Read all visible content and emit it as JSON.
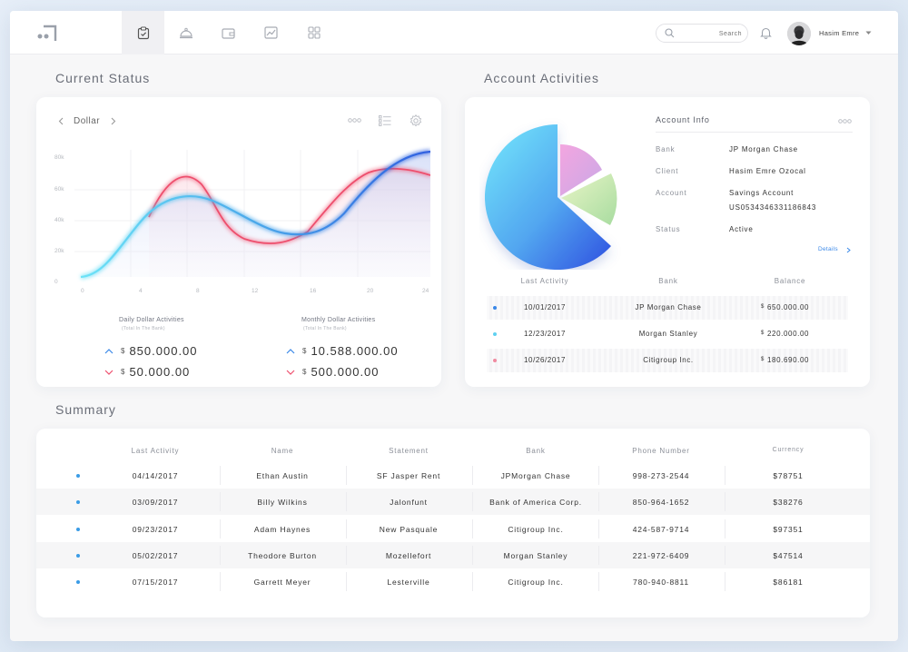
{
  "topbar": {
    "nav": [
      "clipboard-check-icon",
      "bell-service-icon",
      "wallet-icon",
      "chart-icon",
      "grid-icon"
    ],
    "search_placeholder": "Search",
    "user_name": "Hasim Emre"
  },
  "current_status": {
    "title": "Current Status",
    "currency_label": "Dollar",
    "y_ticks": [
      "80k",
      "60k",
      "40k",
      "20k",
      "0"
    ],
    "x_ticks": [
      "0",
      "4",
      "8",
      "12",
      "16",
      "20",
      "24"
    ],
    "daily": {
      "title": "Daily Dollar Activities",
      "subtitle": "(Total In The Bank)",
      "up_value": "850.000.00",
      "down_value": "50.000.00"
    },
    "monthly": {
      "title": "Monthly Dollar Activities",
      "subtitle": "(Total In The Bank)",
      "up_value": "10.588.000.00",
      "down_value": "500.000.00"
    },
    "currency_symbol": "$"
  },
  "account_activities": {
    "title": "Account Activities",
    "info_title": "Account Info",
    "fields": [
      {
        "label": "Bank",
        "value": "JP Morgan Chase"
      },
      {
        "label": "Client",
        "value": "Hasim Emre Ozocal"
      },
      {
        "label": "Account",
        "value": "Savings Account"
      },
      {
        "label": "Status",
        "value": "Active"
      }
    ],
    "account_number": "US0534346331186843",
    "details_label": "Details",
    "table_headers": [
      "Last Activity",
      "Bank",
      "Balance"
    ],
    "rows": [
      {
        "date": "10/01/2017",
        "bank": "JP Morgan Chase",
        "balance": "650.000.00",
        "dot_color": "#3a88e8"
      },
      {
        "date": "12/23/2017",
        "bank": "Morgan Stanley",
        "balance": "220.000.00",
        "dot_color": "#5fd0f0"
      },
      {
        "date": "10/26/2017",
        "bank": "Citigroup Inc.",
        "balance": "180.690.00",
        "dot_color": "#f08aa0"
      }
    ],
    "currency_symbol": "$"
  },
  "summary": {
    "title": "Summary",
    "headers": [
      "Last Activity",
      "Name",
      "Statement",
      "Bank",
      "Phone Number",
      "Currency"
    ],
    "rows": [
      [
        "04/14/2017",
        "Ethan Austin",
        "SF Jasper Rent",
        "JPMorgan Chase",
        "998-273-2544",
        "$78751"
      ],
      [
        "03/09/2017",
        "Billy Wilkins",
        "Jalonfunt",
        "Bank of America Corp.",
        "850-964-1652",
        "$38276"
      ],
      [
        "09/23/2017",
        "Adam Haynes",
        "New Pasquale",
        "Citigroup Inc.",
        "424-587-9714",
        "$97351"
      ],
      [
        "05/02/2017",
        "Theodore Burton",
        "Mozellefort",
        "Morgan Stanley",
        "221-972-6409",
        "$47514"
      ],
      [
        "07/15/2017",
        "Garrett Meyer",
        "Lesterville",
        "Citigroup Inc.",
        "780-940-8811",
        "$86181"
      ]
    ]
  },
  "colors": {
    "accent_blue": "#3a88e8",
    "pink": "#f0506e",
    "cyan": "#5fd0f0"
  }
}
